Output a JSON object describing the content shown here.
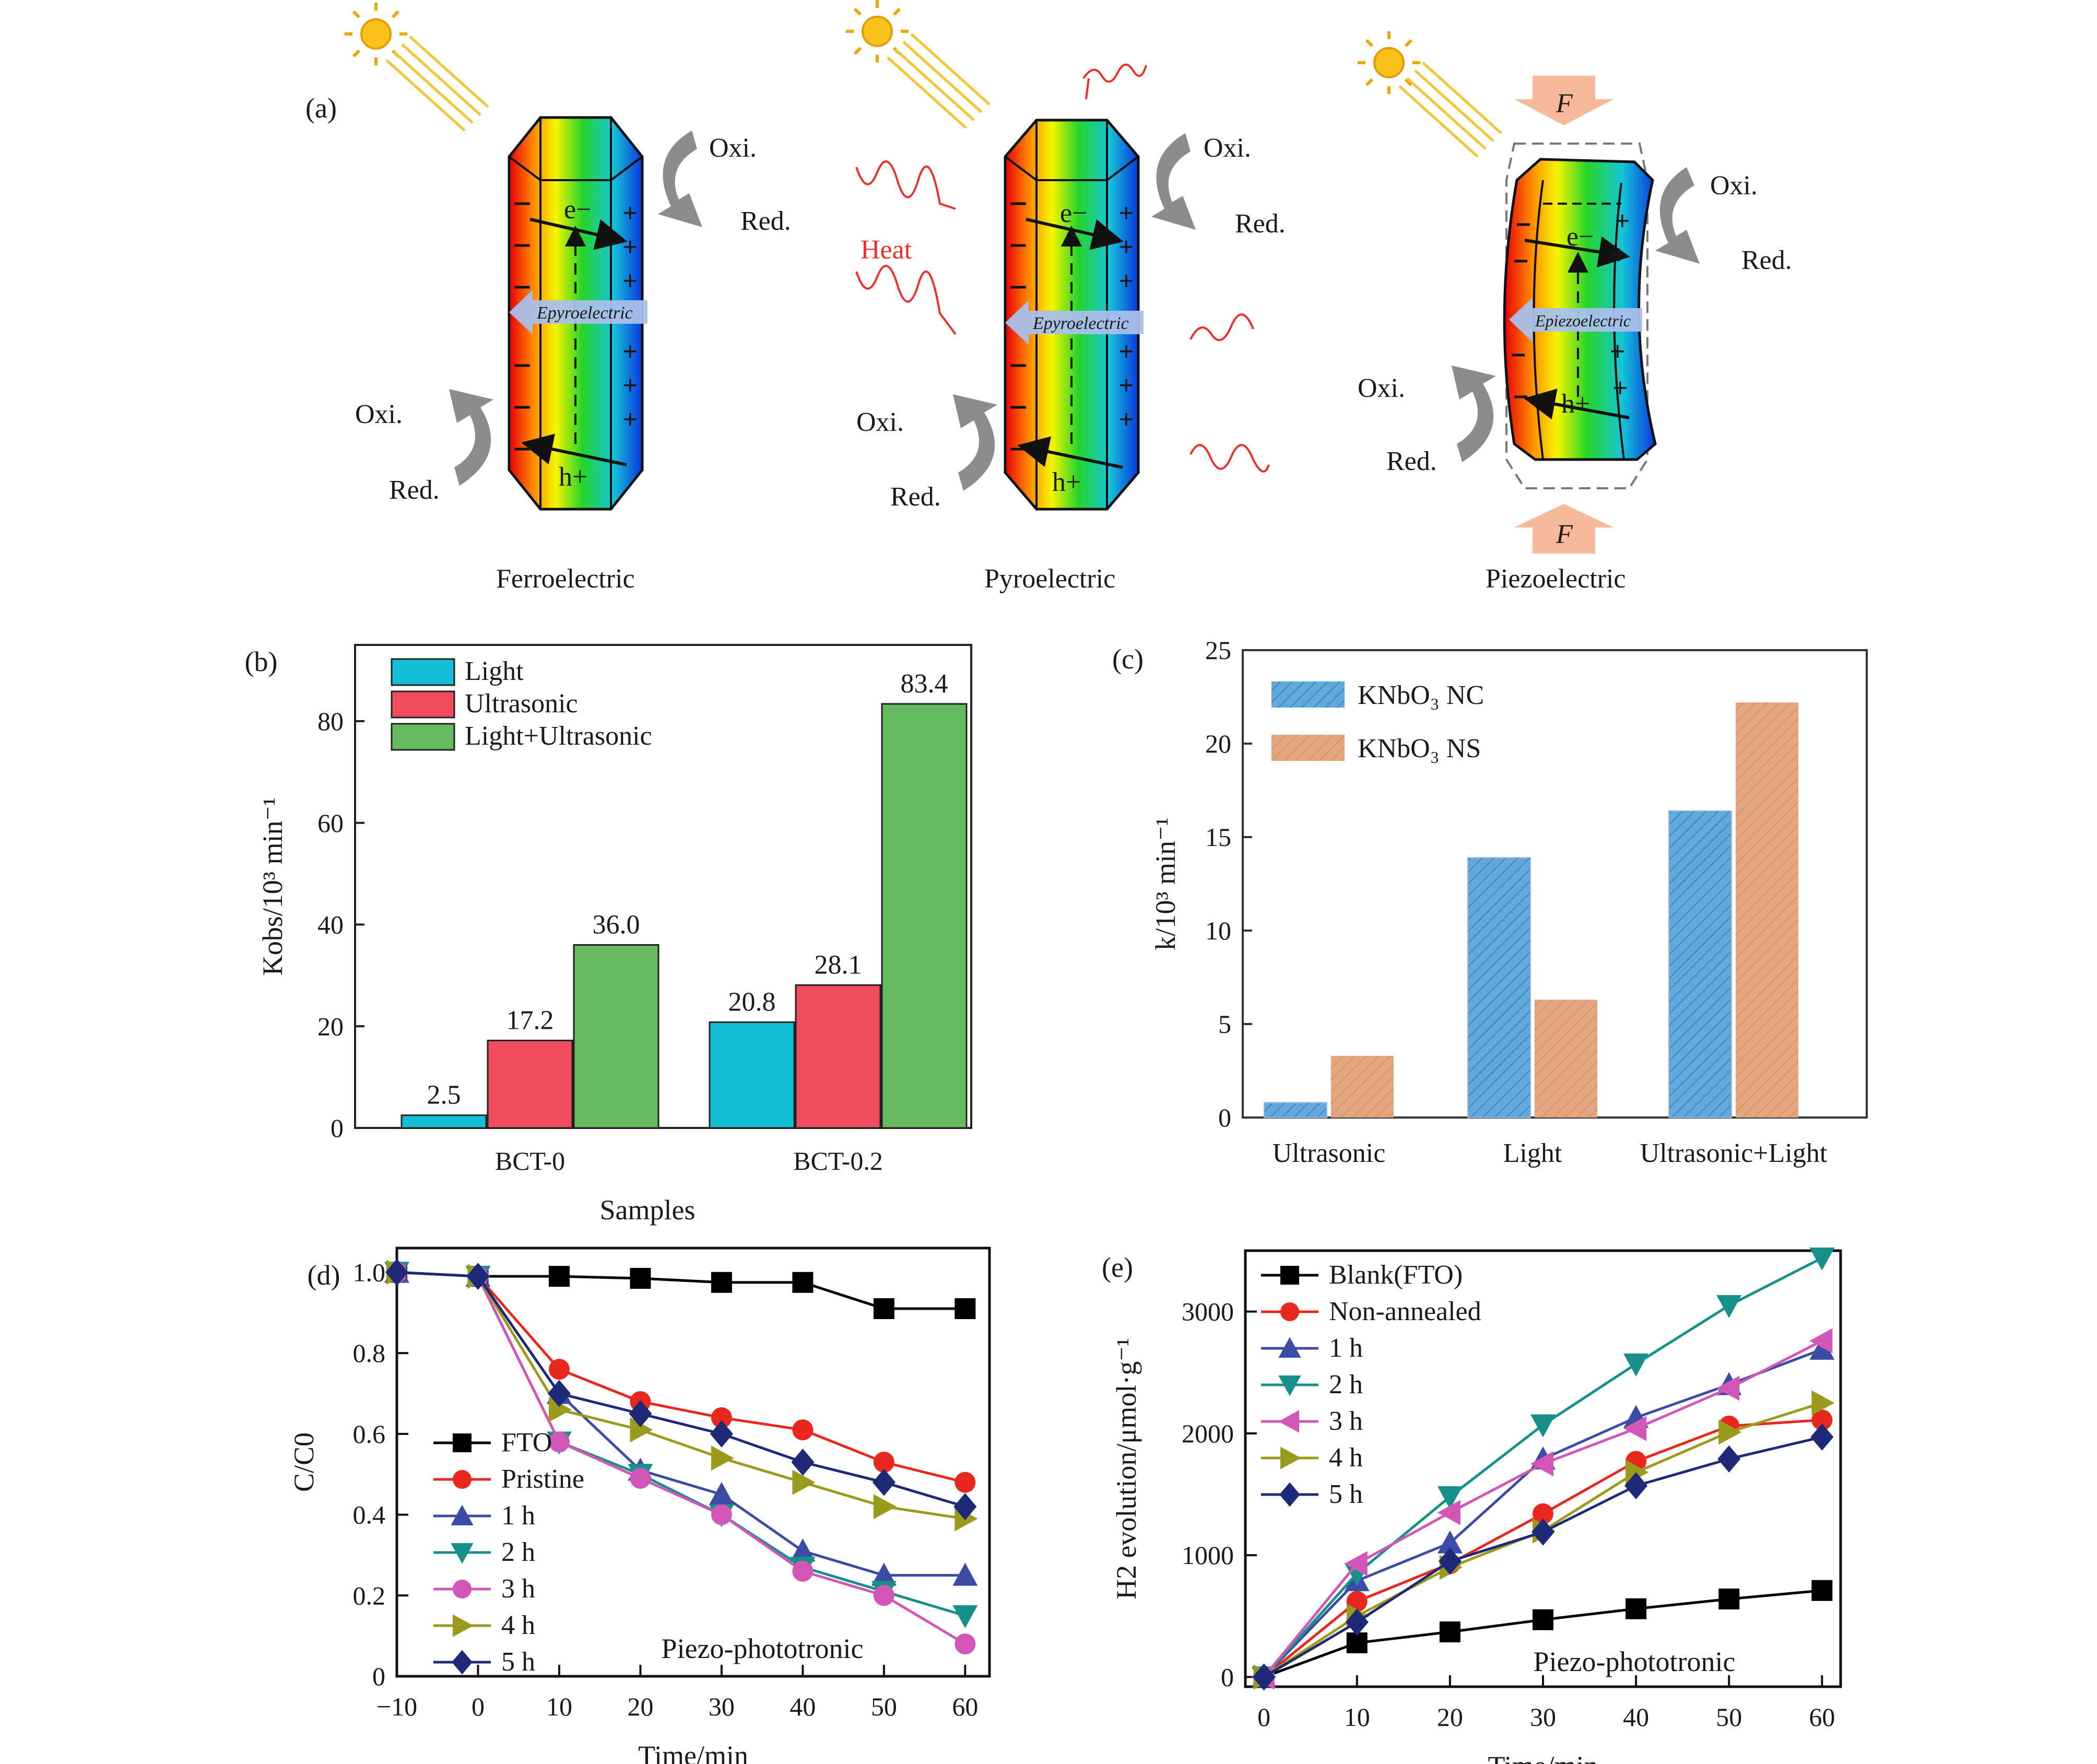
{
  "panel_a": {
    "panel_label": "(a)",
    "diagrams": [
      {
        "caption": "Ferroelectric",
        "field_label": "Epyroelectric",
        "oxi_top": "Oxi.",
        "red_top": "Red.",
        "oxi_bottom": "Oxi.",
        "red_bottom": "Red.",
        "electron": "e−",
        "hole": "h+"
      },
      {
        "caption": "Pyroelectric",
        "field_label": "Epyroelectric",
        "heat_label": "Heat",
        "oxi_top": "Oxi.",
        "red_top": "Red.",
        "oxi_bottom": "Oxi.",
        "red_bottom": "Red.",
        "electron": "e−",
        "hole": "h+"
      },
      {
        "caption": "Piezoelectric",
        "field_label": "Epiezoelectric",
        "force_label": "F",
        "oxi_top": "Oxi.",
        "red_top": "Red.",
        "oxi_bottom": "Oxi.",
        "red_bottom": "Red.",
        "electron": "e−",
        "hole": "h+"
      }
    ]
  },
  "chart_data": [
    {
      "panel": "(b)",
      "type": "bar",
      "categories": [
        "BCT-0",
        "BCT-0.2"
      ],
      "series": [
        {
          "name": "Light",
          "values": [
            2.5,
            20.8
          ],
          "color": "#12bfd6"
        },
        {
          "name": "Ultrasonic",
          "values": [
            17.2,
            28.1
          ],
          "color": "#f04c5d"
        },
        {
          "name": "Light+Ultrasonic",
          "values": [
            36.0,
            83.4
          ],
          "color": "#66bb5e"
        }
      ],
      "data_labels": [
        [
          "2.5",
          "17.2",
          "36.0"
        ],
        [
          "20.8",
          "28.1",
          "83.4"
        ]
      ],
      "xlabel": "Samples",
      "ylabel": "Kobs/10³ min⁻¹",
      "ylim": [
        0,
        95
      ],
      "yticks": [
        0,
        20,
        40,
        60,
        80
      ],
      "legend": "top-left"
    },
    {
      "panel": "(c)",
      "type": "bar",
      "categories": [
        "Ultrasonic",
        "Light",
        "Ultrasonic+Light"
      ],
      "series": [
        {
          "name": "KNbO₃ NC",
          "values": [
            0.8,
            13.9,
            16.4
          ],
          "color": "#5ea9dc"
        },
        {
          "name": "KNbO₃ NS",
          "values": [
            3.3,
            6.3,
            22.2
          ],
          "color": "#e0a27c"
        }
      ],
      "ylabel": "k/10³ min⁻¹",
      "ylim": [
        0,
        25
      ],
      "yticks": [
        0,
        5,
        10,
        15,
        20,
        25
      ],
      "legend": "top-left"
    },
    {
      "panel": "(d)",
      "type": "line",
      "x": [
        -10,
        0,
        10,
        20,
        30,
        40,
        50,
        60
      ],
      "series": [
        {
          "name": "FTO",
          "values": [
            1.0,
            0.99,
            0.99,
            0.985,
            0.975,
            0.975,
            0.91,
            0.91
          ],
          "color": "#000000",
          "marker": "square"
        },
        {
          "name": "Pristine",
          "values": [
            1.0,
            0.99,
            0.76,
            0.68,
            0.64,
            0.61,
            0.53,
            0.48
          ],
          "color": "#e8281e",
          "marker": "circle"
        },
        {
          "name": "1 h",
          "values": [
            1.0,
            0.99,
            0.7,
            0.51,
            0.45,
            0.31,
            0.25,
            0.25
          ],
          "color": "#3c4ba5",
          "marker": "triangle-up"
        },
        {
          "name": "2 h",
          "values": [
            1.0,
            0.99,
            0.58,
            0.5,
            0.4,
            0.27,
            0.21,
            0.15
          ],
          "color": "#178f8a",
          "marker": "triangle-down"
        },
        {
          "name": "3 h",
          "values": [
            1.0,
            0.99,
            0.58,
            0.49,
            0.4,
            0.26,
            0.2,
            0.08
          ],
          "color": "#d256b8",
          "marker": "circle"
        },
        {
          "name": "4 h",
          "values": [
            1.0,
            0.99,
            0.66,
            0.61,
            0.54,
            0.48,
            0.42,
            0.39
          ],
          "color": "#9a9a1c",
          "marker": "triangle-right"
        },
        {
          "name": "5 h",
          "values": [
            1.0,
            0.99,
            0.7,
            0.65,
            0.6,
            0.53,
            0.48,
            0.42
          ],
          "color": "#1e2a78",
          "marker": "diamond"
        }
      ],
      "xlabel": "Time/min",
      "ylabel": "C/C0",
      "xlim": [
        -10,
        63
      ],
      "ylim": [
        0,
        1.06
      ],
      "xticks": [
        -10,
        0,
        10,
        20,
        30,
        40,
        50,
        60
      ],
      "yticks": [
        0,
        0.2,
        0.4,
        0.6,
        0.8,
        1.0
      ],
      "ytick_labels": [
        "0",
        "0.2",
        "0.4",
        "0.6",
        "0.8",
        "1.0"
      ],
      "xtick_labels": [
        "−10",
        "0",
        "10",
        "20",
        "30",
        "40",
        "50",
        "60"
      ],
      "annotation": "Piezo-phototronic",
      "legend": "bottom-left"
    },
    {
      "panel": "(e)",
      "type": "line",
      "x": [
        0,
        10,
        20,
        30,
        40,
        50,
        60
      ],
      "series": [
        {
          "name": "Blank(FTO)",
          "values": [
            0,
            280,
            370,
            470,
            560,
            640,
            710
          ],
          "color": "#000000",
          "marker": "square"
        },
        {
          "name": "Non-annealed",
          "values": [
            0,
            620,
            930,
            1340,
            1770,
            2060,
            2110
          ],
          "color": "#e8281e",
          "marker": "circle"
        },
        {
          "name": "1 h",
          "values": [
            0,
            790,
            1100,
            1790,
            2130,
            2400,
            2690
          ],
          "color": "#3c4ba5",
          "marker": "triangle-up"
        },
        {
          "name": "2 h",
          "values": [
            0,
            850,
            1480,
            2070,
            2570,
            3050,
            3440
          ],
          "color": "#178f8a",
          "marker": "triangle-down"
        },
        {
          "name": "3 h",
          "values": [
            0,
            930,
            1350,
            1750,
            2040,
            2370,
            2760
          ],
          "color": "#d256b8",
          "marker": "triangle-left"
        },
        {
          "name": "4 h",
          "values": [
            0,
            500,
            900,
            1200,
            1680,
            2010,
            2250
          ],
          "color": "#9a9a1c",
          "marker": "triangle-right"
        },
        {
          "name": "5 h",
          "values": [
            0,
            450,
            950,
            1190,
            1570,
            1790,
            1970
          ],
          "color": "#1e2a78",
          "marker": "diamond"
        }
      ],
      "xlabel": "Time/min",
      "ylabel": "H2 evolution/μmol·g⁻¹",
      "xlim": [
        -2,
        62
      ],
      "ylim": [
        -80,
        3500
      ],
      "xticks": [
        0,
        10,
        20,
        30,
        40,
        50,
        60
      ],
      "yticks": [
        0,
        1000,
        2000,
        3000
      ],
      "annotation": "Piezo-phototronic",
      "legend": "top-left"
    }
  ]
}
